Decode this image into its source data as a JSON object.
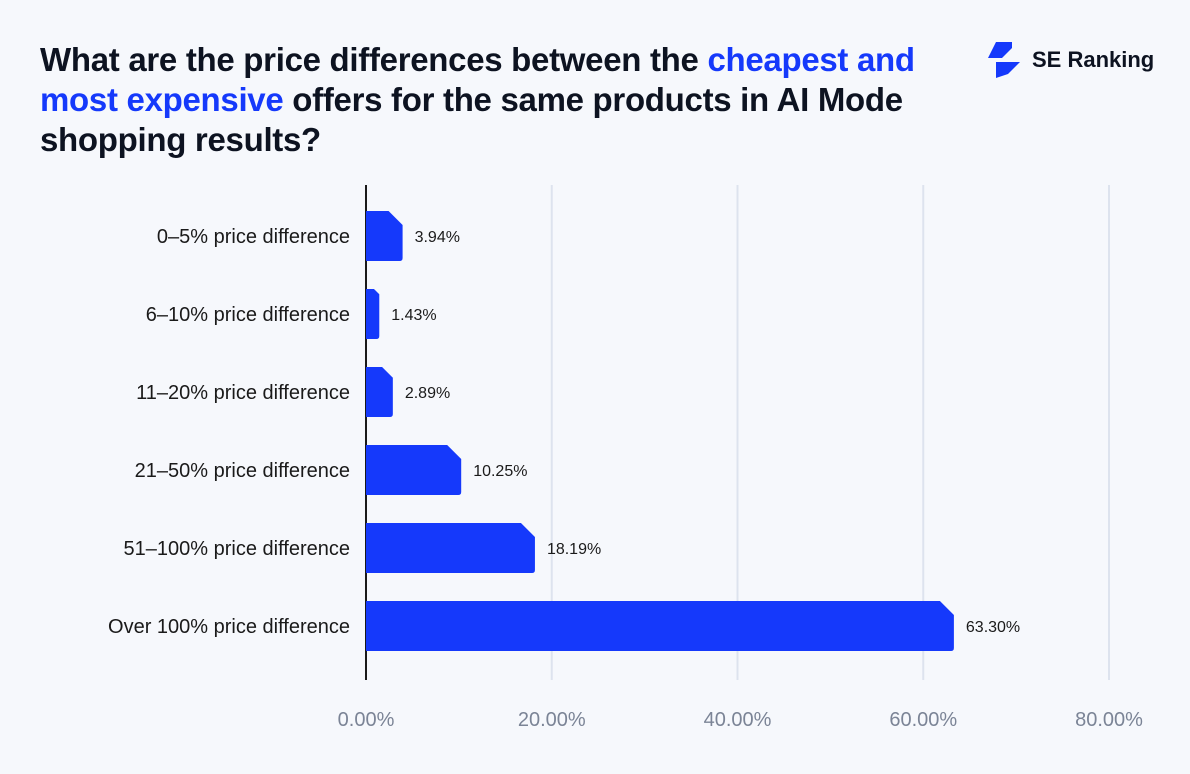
{
  "title": {
    "part1": "What are the price differences between the ",
    "highlight": "cheapest and most expensive",
    "part2": " offers for the same products in AI Mode shopping results?"
  },
  "brand": {
    "name": "SE Ranking",
    "color": "#1539fb"
  },
  "chart_data": {
    "type": "bar",
    "orientation": "horizontal",
    "categories": [
      "0–5% price difference",
      "6–10% price difference",
      "11–20% price difference",
      "21–50% price difference",
      "51–100% price difference",
      "Over 100% price difference"
    ],
    "values": [
      3.94,
      1.43,
      2.89,
      10.25,
      18.19,
      63.3
    ],
    "data_labels": [
      "3.94%",
      "1.43%",
      "2.89%",
      "10.25%",
      "18.19%",
      "63.30%"
    ],
    "xlim": [
      0,
      80
    ],
    "xticks": [
      0,
      20,
      40,
      60,
      80
    ],
    "xtick_labels": [
      "0.00%",
      "20.00%",
      "40.00%",
      "60.00%",
      "80.00%"
    ],
    "grid": true,
    "bar_color": "#1539fb"
  }
}
